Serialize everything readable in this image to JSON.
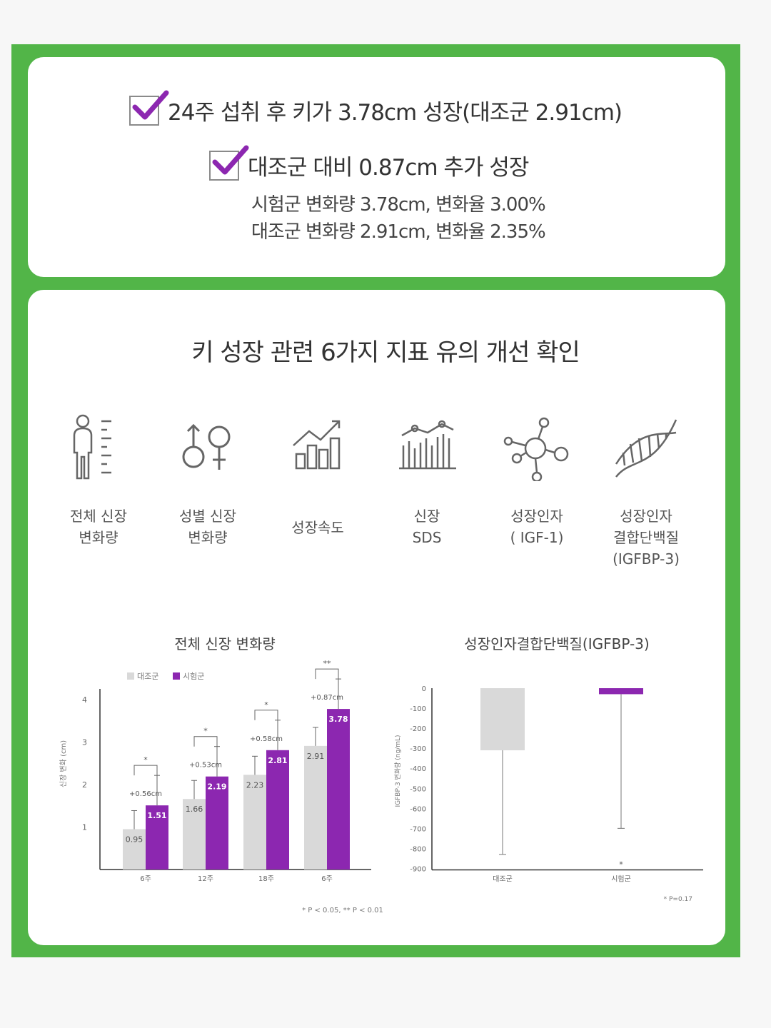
{
  "colors": {
    "frame": "#52b548",
    "accent": "#8c27b0",
    "control": "#d9d9d9"
  },
  "summary": {
    "line1": "24주 섭취 후 키가 3.78cm 성장(대조군 2.91cm)",
    "line2": "대조군 대비 0.87cm 추가 성장",
    "detail1": "시험군 변화량 3.78cm, 변화율 3.00%",
    "detail2": "대조군 변화량 2.91cm, 변화율 2.35%"
  },
  "section": {
    "title": "키 성장 관련 6가지 지표 유의 개선 확인",
    "indicators": [
      {
        "icon": "body-height-icon",
        "label": "전체 신장\n변화량"
      },
      {
        "icon": "gender-symbols-icon",
        "label": "성별 신장\n변화량"
      },
      {
        "icon": "growth-chart-icon",
        "label": "성장속도"
      },
      {
        "icon": "trend-bars-icon",
        "label": "신장\nSDS"
      },
      {
        "icon": "molecule-icon",
        "label": "성장인자\n( IGF-1)"
      },
      {
        "icon": "dna-icon",
        "label": "성장인자\n결합단백질\n(IGFBP-3)"
      }
    ]
  },
  "chart_data": [
    {
      "type": "bar",
      "title": "전체 신장 변화량",
      "ylabel": "신장 변화 (cm)",
      "ylim": [
        0,
        4
      ],
      "yticks": [
        "1",
        "2",
        "3",
        "4"
      ],
      "categories": [
        "6주",
        "12주",
        "18주",
        "6주"
      ],
      "series": [
        {
          "name": "대조군",
          "values": [
            0.95,
            1.66,
            2.23,
            2.91
          ]
        },
        {
          "name": "시험군",
          "values": [
            1.51,
            2.19,
            2.81,
            3.78
          ]
        }
      ],
      "differences": [
        "+0.56cm",
        "+0.53cm",
        "+0.58cm",
        "+0.87cm"
      ],
      "significance": [
        "*",
        "*",
        "*",
        "**"
      ],
      "footnote": "* P < 0.05, ** P < 0.01"
    },
    {
      "type": "bar",
      "title": "성장인자결합단백질(IGFBP-3)",
      "ylabel": "IGFBP-3 변화량 (ng/mL)",
      "ylim": [
        -900,
        0
      ],
      "yticks": [
        "0",
        "-100",
        "-200",
        "-300",
        "-400",
        "-500",
        "-600",
        "-700",
        "-800",
        "-900"
      ],
      "categories": [
        "대조군",
        "시험군"
      ],
      "values": [
        -310,
        -30
      ],
      "error_low": [
        -830,
        -700
      ],
      "significance": [
        "",
        "*"
      ],
      "footnote": "* P=0.17"
    }
  ]
}
